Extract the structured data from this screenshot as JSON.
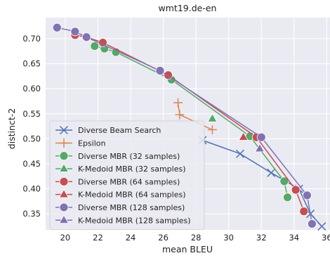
{
  "chart_data": {
    "type": "scatter",
    "title": "wmt19.de-en",
    "xlabel": "mean BLEU",
    "ylabel": "distinct-2",
    "xlim": [
      18.8,
      36.2
    ],
    "ylim": [
      0.318,
      0.742
    ],
    "xticks": [
      20,
      22,
      24,
      26,
      28,
      30,
      32,
      34,
      36
    ],
    "yticks": [
      0.35,
      0.4,
      0.45,
      0.5,
      0.55,
      0.6,
      0.65,
      0.7
    ],
    "xtick_labels": [
      "20",
      "22",
      "24",
      "26",
      "28",
      "30",
      "32",
      "34",
      "36"
    ],
    "ytick_labels": [
      "0.35",
      "0.40",
      "0.45",
      "0.50",
      "0.55",
      "0.60",
      "0.65",
      "0.70"
    ],
    "grid": true,
    "background": "#eaeaf2",
    "legend_position": "lower-left",
    "series": [
      {
        "name": "Diverse Beam Search",
        "color": "#4c72b0",
        "marker": "x",
        "connected": true,
        "x": [
          28.4,
          30.7,
          32.6,
          34.3,
          35.0,
          35.7
        ],
        "y": [
          0.497,
          0.47,
          0.432,
          0.4,
          0.35,
          0.325
        ]
      },
      {
        "name": "Epsilon",
        "color": "#dd8452",
        "marker": "plus",
        "connected": true,
        "x": [
          26.9,
          27.0,
          29.0
        ],
        "y": [
          0.572,
          0.548,
          0.518
        ]
      },
      {
        "name": "Diverse MBR (32 samples)",
        "color": "#55a868",
        "marker": "circle",
        "connected": true,
        "x": [
          21.8,
          22.4,
          23.1,
          26.5,
          31.3,
          33.4,
          33.6
        ],
        "y": [
          0.685,
          0.68,
          0.673,
          0.618,
          0.505,
          0.415,
          0.383
        ]
      },
      {
        "name": "K-Medoid MBR (32 samples)",
        "color": "#55a868",
        "marker": "triangle",
        "connected": false,
        "x": [
          29.0
        ],
        "y": [
          0.54
        ]
      },
      {
        "name": "Diverse MBR (64 samples)",
        "color": "#c44e52",
        "marker": "circle",
        "connected": true,
        "x": [
          20.6,
          21.3,
          22.3,
          26.3,
          31.7,
          34.1,
          34.6
        ],
        "y": [
          0.707,
          0.703,
          0.692,
          0.627,
          0.503,
          0.398,
          0.355
        ]
      },
      {
        "name": "K-Medoid MBR (64 samples)",
        "color": "#c44e52",
        "marker": "triangle",
        "connected": false,
        "x": [
          30.9
        ],
        "y": [
          0.503
        ]
      },
      {
        "name": "Diverse MBR (128 samples)",
        "color": "#8172b3",
        "marker": "circle",
        "connected": true,
        "x": [
          19.5,
          20.6,
          21.3,
          25.8,
          32.0,
          34.8,
          35.1
        ],
        "y": [
          0.722,
          0.714,
          0.703,
          0.636,
          0.503,
          0.387,
          0.33
        ]
      },
      {
        "name": "K-Medoid MBR (128 samples)",
        "color": "#8172b3",
        "marker": "triangle",
        "connected": false,
        "x": [
          31.9
        ],
        "y": [
          0.48
        ]
      }
    ]
  }
}
